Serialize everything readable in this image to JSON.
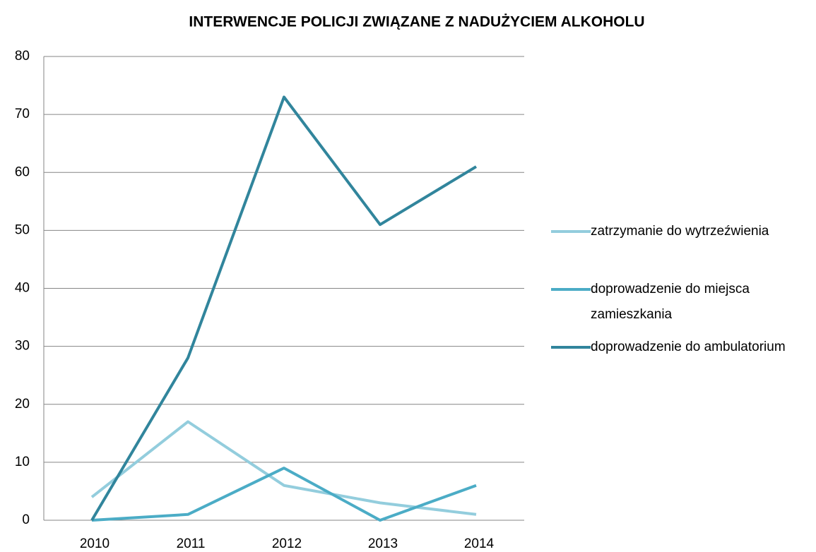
{
  "chart_data": {
    "type": "line",
    "title": "INTERWENCJE POLICJI ZWIĄZANE Z NADUŻYCIEM ALKOHOLU",
    "categories": [
      "2010",
      "2011",
      "2012",
      "2013",
      "2014"
    ],
    "series": [
      {
        "name": "zatrzymanie do wytrzeźwienia",
        "color": "#93cddd",
        "values": [
          4,
          17,
          6,
          3,
          1
        ]
      },
      {
        "name": "doprowadzenie do miejsca zamieszkania",
        "color": "#4bacc6",
        "values": [
          0,
          1,
          9,
          0,
          6
        ]
      },
      {
        "name": "doprowadzenie do ambulatorium",
        "color": "#31859c",
        "values": [
          0,
          28,
          73,
          51,
          61
        ]
      }
    ],
    "ylim": [
      0,
      80
    ],
    "yticks": [
      0,
      10,
      20,
      30,
      40,
      50,
      60,
      70,
      80
    ],
    "grid": true,
    "legend": "right"
  }
}
